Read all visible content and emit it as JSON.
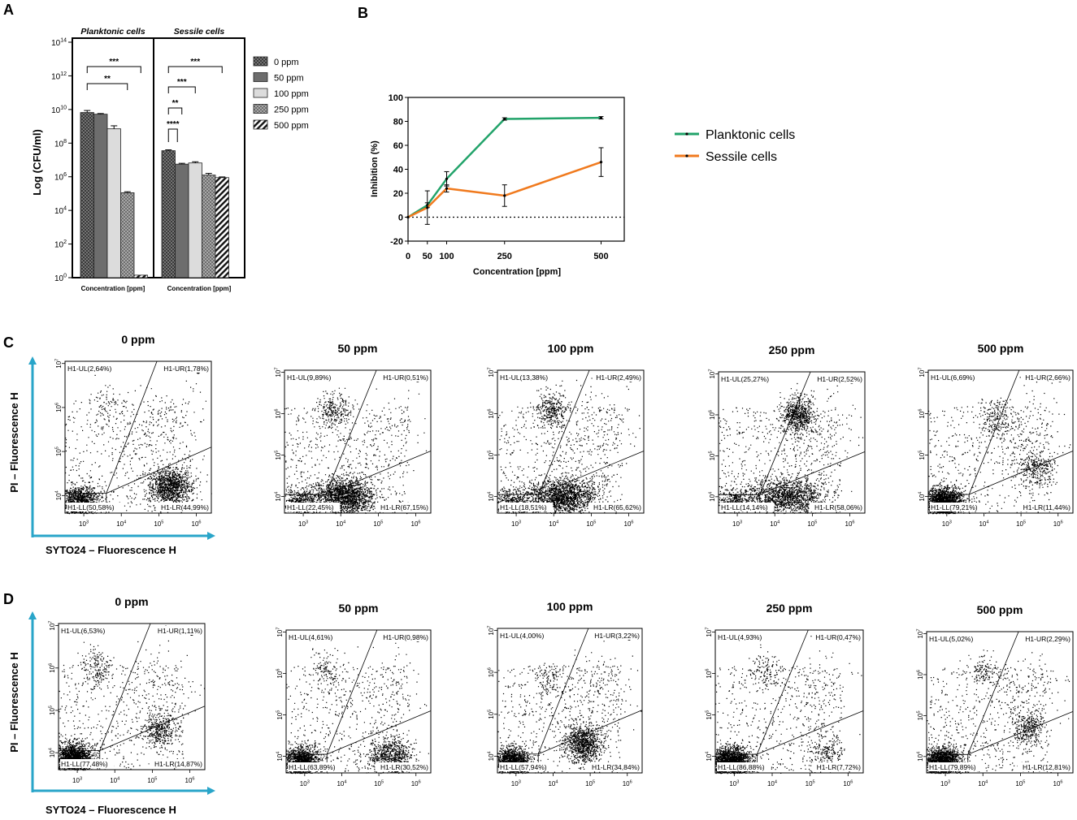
{
  "panel_labels": {
    "a": "A",
    "b": "B",
    "c": "C",
    "d": "D"
  },
  "chart_data": [
    {
      "id": "A",
      "type": "bar",
      "title": "",
      "ylabel": "Log (CFU/ml)",
      "ylim_exponent": [
        0,
        14
      ],
      "ytick_exponents": [
        0,
        2,
        4,
        6,
        8,
        10,
        12,
        14
      ],
      "ytick_base": "10",
      "yscale": "log",
      "legend": [
        "0 ppm",
        "50 ppm",
        "100 ppm",
        "250 ppm",
        "500 ppm"
      ],
      "legend_position": "right",
      "groups": [
        {
          "name": "Planktonic cells",
          "xlabel": "Concentration [ppm]",
          "log_values": [
            9.82,
            9.72,
            8.85,
            5.05,
            0.15
          ],
          "log_errors": [
            0.12,
            0.04,
            0.18,
            0.06,
            0.0
          ],
          "significance": [
            {
              "from": 0,
              "to": 4,
              "label": "***"
            },
            {
              "from": 0,
              "to": 3,
              "label": "**"
            }
          ]
        },
        {
          "name": "Sessile cells",
          "xlabel": "Concentration [ppm]",
          "log_values": [
            7.55,
            6.75,
            6.82,
            6.1,
            5.95
          ],
          "log_errors": [
            0.05,
            0.05,
            0.07,
            0.1,
            0.04
          ],
          "significance": [
            {
              "from": 0,
              "to": 4,
              "label": "***"
            },
            {
              "from": 0,
              "to": 2,
              "label": "***"
            },
            {
              "from": 0,
              "to": 1,
              "label": "**"
            },
            {
              "from": 0,
              "to": 0,
              "label": "****"
            }
          ]
        }
      ]
    },
    {
      "id": "B",
      "type": "line",
      "title": "",
      "xlabel": "Concentration [ppm]",
      "ylabel": "Inhibition (%)",
      "x": [
        0,
        50,
        100,
        250,
        500
      ],
      "xticks": [
        0,
        50,
        100,
        250,
        500
      ],
      "xlim": [
        0,
        560
      ],
      "ylim": [
        -20,
        100
      ],
      "yticks": [
        -20,
        0,
        20,
        40,
        60,
        80,
        100
      ],
      "reference_line": 0,
      "series": [
        {
          "name": "Planktonic cells",
          "color": "#22a36a",
          "values": [
            0,
            10,
            32,
            82,
            83
          ],
          "errors": [
            0,
            2,
            6,
            1,
            1
          ]
        },
        {
          "name": "Sessile cells",
          "color": "#f07a1e",
          "values": [
            0,
            8,
            24,
            18,
            46
          ],
          "errors": [
            0,
            14,
            3,
            9,
            12
          ]
        }
      ],
      "legend_position": "right"
    },
    {
      "id": "C",
      "type": "scatter",
      "xlabel": "SYTO24 – Fluorescence H",
      "ylabel": "PI – Fluorescence H",
      "x_tick_exponents": [
        3,
        4,
        5,
        6
      ],
      "y_tick_exponents": [
        4,
        5,
        6,
        7
      ],
      "tick_base": "10",
      "plots": [
        {
          "title": "0 ppm",
          "UL": "H1-UL(2,64%)",
          "UR": "H1-UR(1,78%)",
          "LL": "H1-LL(50,58%)",
          "LR": "H1-LR(44,99%)"
        },
        {
          "title": "50 ppm",
          "UL": "H1-UL(9,89%)",
          "UR": "H1-UR(0,51%)",
          "LL": "H1-LL(22,45%)",
          "LR": "H1-LR(67,15%)"
        },
        {
          "title": "100 ppm",
          "UL": "H1-UL(13,38%)",
          "UR": "H1-UR(2,49%)",
          "LL": "H1-LL(18,51%)",
          "LR": "H1-LR(65,62%)"
        },
        {
          "title": "250 ppm",
          "UL": "H1-UL(25,27%)",
          "UR": "H1-UR(2,52%)",
          "LL": "H1-LL(14,14%)",
          "LR": "H1-LR(58,06%)"
        },
        {
          "title": "500 ppm",
          "UL": "H1-UL(6,69%)",
          "UR": "H1-UR(2,66%)",
          "LL": "H1-LL(79,21%)",
          "LR": "H1-LR(11,44%)"
        }
      ]
    },
    {
      "id": "D",
      "type": "scatter",
      "xlabel": "SYTO24 – Fluorescence H",
      "ylabel": "PI – Fluorescence H",
      "x_tick_exponents": [
        3,
        4,
        5,
        6
      ],
      "y_tick_exponents": [
        4,
        5,
        6,
        7
      ],
      "tick_base": "10",
      "plots": [
        {
          "title": "0 ppm",
          "UL": "H1-UL(6,53%)",
          "UR": "H1-UR(1,11%)",
          "LL": "H1-LL(77,48%)",
          "LR": "H1-LR(14,87%)"
        },
        {
          "title": "50 ppm",
          "UL": "H1-UL(4,61%)",
          "UR": "H1-UR(0,98%)",
          "LL": "H1-LL(63,89%)",
          "LR": "H1-LR(30,52%)"
        },
        {
          "title": "100 ppm",
          "UL": "H1-UL(4,00%)",
          "UR": "H1-UR(3,22%)",
          "LL": "H1-LL(57,94%)",
          "LR": "H1-LR(34,84%)"
        },
        {
          "title": "250 ppm",
          "UL": "H1-UL(4,93%)",
          "UR": "H1-UR(0,47%)",
          "LL": "H1-LL(86,88%)",
          "LR": "H1-LR(7,72%)"
        },
        {
          "title": "500 ppm",
          "UL": "H1-UL(5,02%)",
          "UR": "H1-UR(2,29%)",
          "LL": "H1-LL(79,89%)",
          "LR": "H1-LR(12,81%)"
        }
      ]
    }
  ]
}
